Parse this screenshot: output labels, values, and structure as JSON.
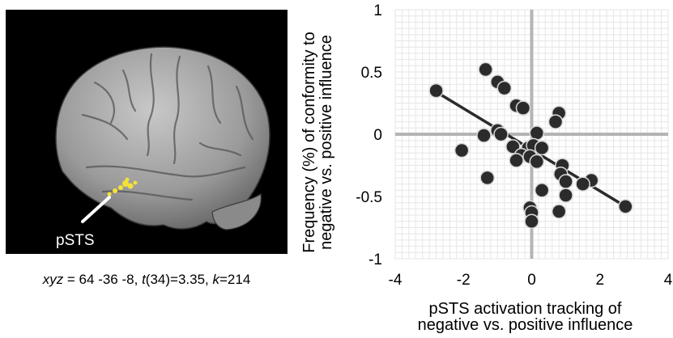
{
  "brain": {
    "roi_label": "pSTS",
    "caption": {
      "var1": "xyz",
      "part1": " = 64 -36 -8, ",
      "var2": "t",
      "part2": "(34)=3.35, ",
      "var3": "k",
      "part3": "=214"
    },
    "colors": {
      "background": "#000000",
      "cortex": "#9a9a9a",
      "activation": "#f2e23a",
      "pointer": "#ffffff"
    },
    "icon": "brain-lateral-view"
  },
  "chart_data": {
    "type": "scatter",
    "title": "",
    "xlabel": [
      "pSTS activation tracking of",
      "negative vs. positive influence"
    ],
    "ylabel": [
      "Frequency (%) of conformity to",
      "negative vs. positive influence"
    ],
    "xlim": [
      -4,
      4
    ],
    "ylim": [
      -1,
      1
    ],
    "xticks": [
      -4,
      -2,
      0,
      2,
      4
    ],
    "yticks": [
      1,
      0.5,
      0,
      -0.5,
      -1
    ],
    "xtick_labels": [
      "-4",
      "-2",
      "0",
      "2",
      "4"
    ],
    "ytick_labels": [
      "1",
      "0.5",
      "0",
      "-0.5",
      "-1"
    ],
    "grid": true,
    "points": [
      {
        "x": -2.8,
        "y": 0.35
      },
      {
        "x": -1.35,
        "y": 0.52
      },
      {
        "x": -1.0,
        "y": 0.42
      },
      {
        "x": -0.8,
        "y": 0.37
      },
      {
        "x": -0.45,
        "y": 0.23
      },
      {
        "x": -0.25,
        "y": 0.21
      },
      {
        "x": 0.8,
        "y": 0.17
      },
      {
        "x": 0.7,
        "y": 0.1
      },
      {
        "x": -1.0,
        "y": 0.03
      },
      {
        "x": -1.4,
        "y": -0.01
      },
      {
        "x": -0.9,
        "y": 0.0
      },
      {
        "x": 0.15,
        "y": 0.01
      },
      {
        "x": -0.55,
        "y": -0.1
      },
      {
        "x": -0.1,
        "y": -0.11
      },
      {
        "x": 0.05,
        "y": -0.09
      },
      {
        "x": 0.3,
        "y": -0.11
      },
      {
        "x": -2.05,
        "y": -0.13
      },
      {
        "x": -0.3,
        "y": -0.17
      },
      {
        "x": -0.05,
        "y": -0.18
      },
      {
        "x": 0.15,
        "y": -0.22
      },
      {
        "x": -0.45,
        "y": -0.21
      },
      {
        "x": 0.9,
        "y": -0.25
      },
      {
        "x": 0.85,
        "y": -0.32
      },
      {
        "x": 1.0,
        "y": -0.38
      },
      {
        "x": 1.75,
        "y": -0.37
      },
      {
        "x": 1.5,
        "y": -0.4
      },
      {
        "x": -1.3,
        "y": -0.35
      },
      {
        "x": 0.3,
        "y": -0.45
      },
      {
        "x": 1.0,
        "y": -0.49
      },
      {
        "x": -0.05,
        "y": -0.59
      },
      {
        "x": 0.0,
        "y": -0.63
      },
      {
        "x": 0.8,
        "y": -0.62
      },
      {
        "x": 0.0,
        "y": -0.7
      },
      {
        "x": 2.75,
        "y": -0.58
      }
    ],
    "fit_line": {
      "x": [
        -2.8,
        2.75
      ],
      "y": [
        0.34,
        -0.58
      ]
    },
    "colors": {
      "marker": "#2b2b2b",
      "marker_edge": "#d9d9d9",
      "fit": "#2b2b2b",
      "grid": "#e6e6e6",
      "axis": "#b4b4b4"
    }
  }
}
